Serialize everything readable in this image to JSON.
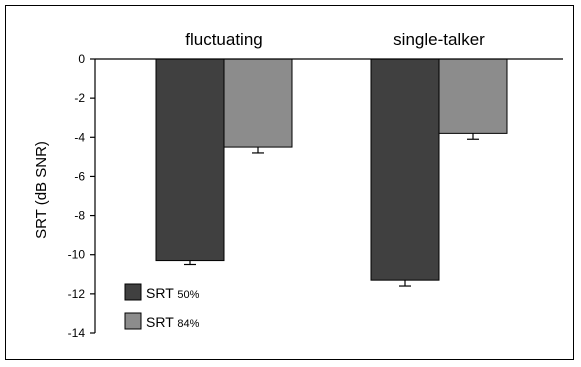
{
  "chart_data": {
    "type": "bar",
    "title": "",
    "xlabel": "",
    "ylabel": "SRT (dB SNR)",
    "ylim": [
      -14,
      0
    ],
    "yticks": [
      0,
      -2,
      -4,
      -6,
      -8,
      -10,
      -12,
      -14
    ],
    "ytick_labels": [
      "0",
      "-2",
      "-4",
      "-6",
      "-8",
      "-10",
      "-12",
      "-14"
    ],
    "categories": [
      "fluctuating",
      "single-talker"
    ],
    "series": [
      {
        "name": "SRT 50%",
        "legend_main": "SRT",
        "legend_sub": "50%",
        "color": "#404040",
        "values": [
          -10.3,
          -11.3
        ],
        "errors": [
          0.2,
          0.3
        ]
      },
      {
        "name": "SRT 84%",
        "legend_main": "SRT",
        "legend_sub": "84%",
        "color": "#8c8c8c",
        "values": [
          -4.5,
          -3.8
        ],
        "errors": [
          0.3,
          0.3
        ]
      }
    ],
    "grid": false,
    "legend_position": "bottom-left"
  }
}
